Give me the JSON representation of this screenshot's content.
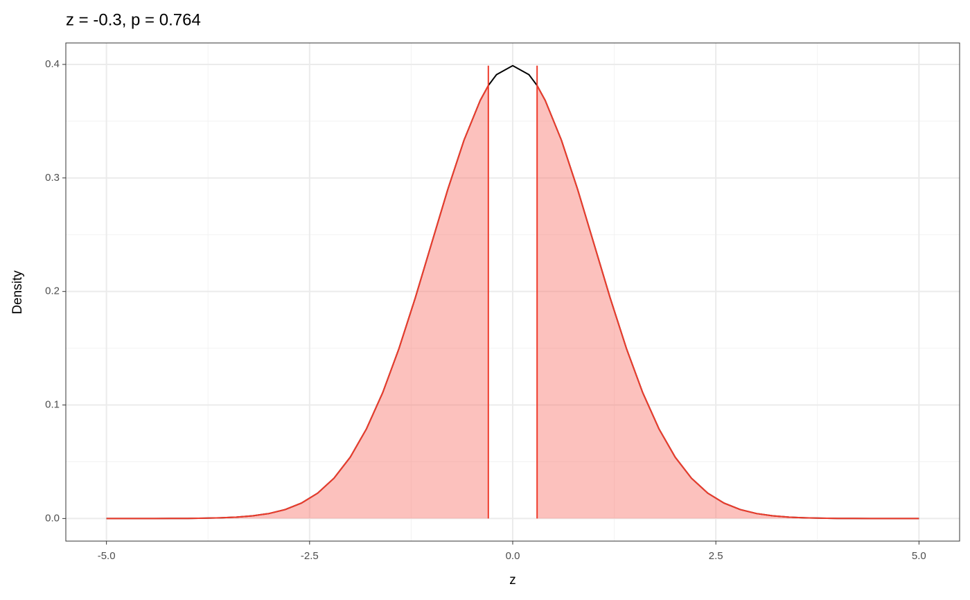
{
  "chart_data": {
    "type": "density",
    "title": "z = -0.3, p = 0.764",
    "x_label": "z",
    "y_label": "Density",
    "x": [
      -5,
      -4.8,
      -4.6,
      -4.4,
      -4.2,
      -4,
      -3.8,
      -3.6,
      -3.4,
      -3.2,
      -3,
      -2.8,
      -2.6,
      -2.4,
      -2.2,
      -2,
      -1.8,
      -1.6,
      -1.4,
      -1.2,
      -1,
      -0.8,
      -0.6,
      -0.4,
      -0.3,
      -0.2,
      0,
      0.2,
      0.3,
      0.4,
      0.6,
      0.8,
      1,
      1.2,
      1.4,
      1.6,
      1.8,
      2,
      2.2,
      2.4,
      2.6,
      2.8,
      3,
      3.2,
      3.4,
      3.6,
      3.8,
      4,
      4.2,
      4.4,
      4.6,
      4.8,
      5
    ],
    "series": [
      {
        "color": "#000000",
        "values": [
          0,
          0,
          0,
          0,
          0.0001,
          0.0001,
          0.0003,
          0.0006,
          0.0012,
          0.0024,
          0.0044,
          0.0079,
          0.0136,
          0.0224,
          0.0355,
          0.054,
          0.079,
          0.1109,
          0.1497,
          0.1942,
          0.242,
          0.2897,
          0.3332,
          0.3683,
          0.3814,
          0.391,
          0.3989,
          0.391,
          0.3814,
          0.3683,
          0.3332,
          0.2897,
          0.242,
          0.1942,
          0.1497,
          0.1109,
          0.079,
          0.054,
          0.0355,
          0.0224,
          0.0136,
          0.0079,
          0.0044,
          0.0024,
          0.0012,
          0.0006,
          0.0003,
          0.0001,
          0.0001,
          0,
          0,
          0,
          0
        ]
      }
    ],
    "critical_values": [
      -0.3,
      0.3
    ],
    "shade_color": "#f8766d",
    "line_color": "#ee3b2b",
    "xlim": [
      -5.5,
      5.5
    ],
    "ylim": [
      -0.0199,
      0.4189
    ],
    "xticks": [
      {
        "value": -5,
        "label": "-5.0"
      },
      {
        "value": -2.5,
        "label": "-2.5"
      },
      {
        "value": 0,
        "label": "0.0"
      },
      {
        "value": 2.5,
        "label": "2.5"
      },
      {
        "value": 5,
        "label": "5.0"
      }
    ],
    "yticks": [
      {
        "value": 0,
        "label": "0.0"
      },
      0.1,
      0.2,
      0.3,
      0.4
    ],
    "x_minor_grid": [
      -3.75,
      -1.25,
      1.25,
      3.75
    ],
    "y_minor_grid": [
      0.05,
      0.15,
      0.25,
      0.35
    ],
    "grid": true
  }
}
